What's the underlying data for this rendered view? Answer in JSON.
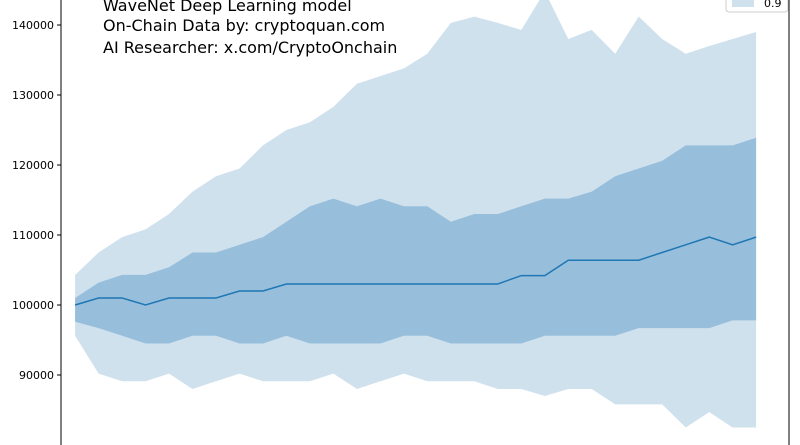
{
  "chart_data": {
    "type": "area",
    "title": "",
    "xlabel": "",
    "ylabel": "",
    "ylim": [
      80000,
      145000
    ],
    "yticks": [
      90000,
      100000,
      110000,
      120000,
      130000,
      140000
    ],
    "x": [
      0,
      1,
      2,
      3,
      4,
      5,
      6,
      7,
      8,
      9,
      10,
      11,
      12,
      13,
      14,
      15,
      16,
      17,
      18,
      19,
      20,
      21,
      22,
      23,
      24,
      25,
      26,
      27,
      28,
      29
    ],
    "xlim": [
      -0.6,
      30.4
    ],
    "annotations": [
      "WaveNet Deep Learning model",
      "On-Chain Data by: cryptoquan.com",
      "AI Researcher: x.com/CryptoOnchain"
    ],
    "legend": {
      "location": "top-right",
      "entries": [
        "0.9"
      ]
    },
    "grid": false,
    "colors": {
      "line": "#1f77b4",
      "outer_band": "#d0e1ee",
      "inner_band": "#97bfdc"
    },
    "series": [
      {
        "role": "median",
        "values": [
          100000,
          101000,
          101000,
          100000,
          101000,
          101000,
          101000,
          102000,
          102000,
          103000,
          103000,
          103000,
          103000,
          103000,
          103000,
          103000,
          103000,
          103000,
          103000,
          104200,
          104200,
          106400,
          106400,
          106400,
          106400,
          107500,
          108600,
          109700,
          108600,
          109700
        ]
      },
      {
        "role": "inner_upper",
        "values": [
          101000,
          103200,
          104300,
          104300,
          105400,
          107500,
          107500,
          108600,
          109700,
          111900,
          114100,
          115200,
          114100,
          115200,
          114100,
          114100,
          111900,
          113000,
          113000,
          114100,
          115200,
          115200,
          116200,
          118400,
          119500,
          120600,
          122800,
          122800,
          122800,
          123900
        ]
      },
      {
        "role": "inner_lower",
        "values": [
          97600,
          96700,
          95600,
          94500,
          94500,
          95600,
          95600,
          94500,
          94500,
          95600,
          94500,
          94500,
          94500,
          94500,
          95600,
          95600,
          94500,
          94500,
          94500,
          94500,
          95600,
          95600,
          95600,
          95600,
          96700,
          96700,
          96700,
          96700,
          97800,
          97800
        ]
      },
      {
        "role": "outer_upper",
        "name": "0.9",
        "values": [
          104300,
          107500,
          109700,
          110800,
          113000,
          116200,
          118400,
          119500,
          122800,
          125000,
          126100,
          128300,
          131600,
          132700,
          133800,
          135900,
          140300,
          141200,
          140300,
          139300,
          144800,
          138000,
          139300,
          135900,
          141200,
          138000,
          135900,
          137000,
          138000,
          139000
        ]
      },
      {
        "role": "outer_lower",
        "values": [
          95600,
          90200,
          89100,
          89100,
          90200,
          88000,
          89100,
          90200,
          89100,
          89100,
          89100,
          90200,
          88000,
          89100,
          90200,
          89100,
          89100,
          89100,
          88000,
          88000,
          87000,
          88000,
          88000,
          85800,
          85800,
          85800,
          82500,
          84700,
          82500,
          82500
        ]
      }
    ]
  }
}
